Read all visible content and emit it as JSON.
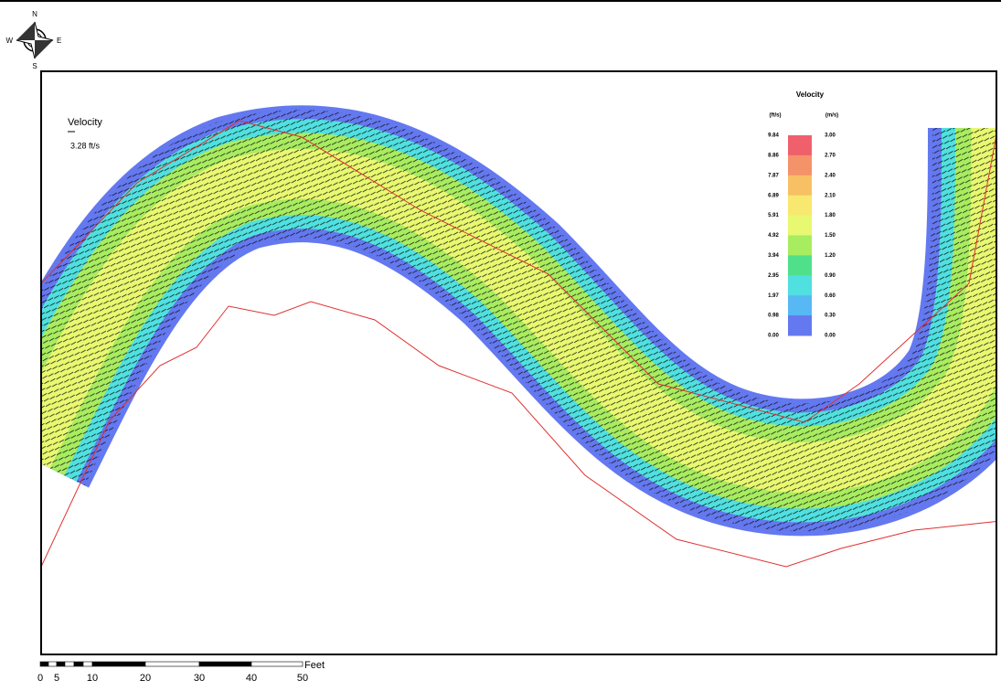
{
  "compass": {
    "north": "N",
    "east": "E",
    "south": "S",
    "west": "W"
  },
  "vector_reference": {
    "title": "Velocity",
    "label": "3.28 ft/s"
  },
  "legend": {
    "title": "Velocity",
    "unit_left": "(ft/s)",
    "unit_right": "(m/s)",
    "left_labels": [
      "9.84",
      "8.86",
      "7.87",
      "6.89",
      "5.91",
      "4.92",
      "3.94",
      "2.95",
      "1.97",
      "0.98",
      "0.00"
    ],
    "right_labels": [
      "3.00",
      "2.70",
      "2.40",
      "2.10",
      "1.80",
      "1.50",
      "1.20",
      "0.90",
      "0.60",
      "0.30",
      "0.00"
    ],
    "colors": [
      "#f0606c",
      "#f4926a",
      "#f8c064",
      "#f8e870",
      "#e8f870",
      "#a8ec60",
      "#50e08c",
      "#50e0e0",
      "#58b8f4",
      "#6478f0"
    ]
  },
  "scale_bar": {
    "unit": "Feet",
    "labels": [
      "0",
      "5",
      "10",
      "20",
      "30",
      "40",
      "50"
    ]
  }
}
